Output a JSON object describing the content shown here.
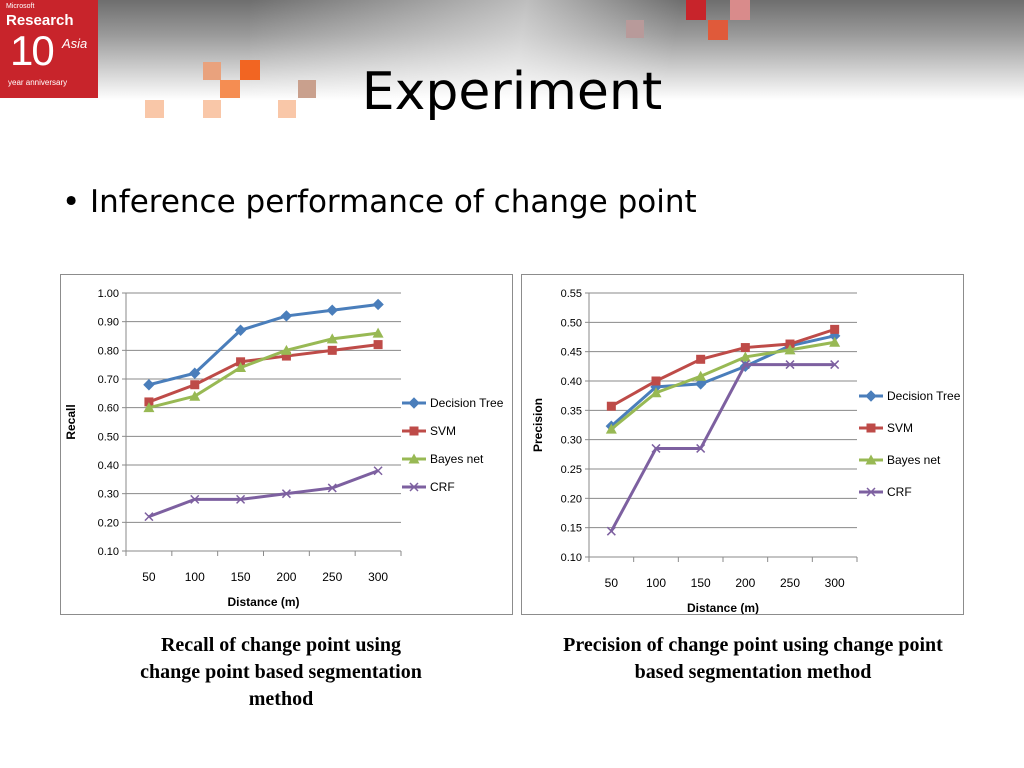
{
  "slide": {
    "title": "Experiment",
    "bullet": "Inference performance of change point"
  },
  "logo": {
    "brand": "Microsoft",
    "research": "Research",
    "number": "10",
    "asia": "Asia",
    "anniversary": "year anniversary"
  },
  "captions": {
    "left": "Recall of change point using change point based segmentation method",
    "right": "Precision of change point using change point based segmentation method"
  },
  "colors": {
    "decision_tree": "#4a7ebb",
    "svm": "#be4b48",
    "bayes_net": "#98b954",
    "crf": "#7d60a0",
    "logo_red": "#c8242b",
    "accent_orange": "#f26522"
  },
  "chart_data": [
    {
      "type": "line",
      "title": "",
      "xlabel": "Distance (m)",
      "ylabel": "Recall",
      "categories": [
        "50",
        "100",
        "150",
        "200",
        "250",
        "300"
      ],
      "ylim": [
        0.1,
        1.0
      ],
      "yticks": [
        "0.10",
        "0.20",
        "0.30",
        "0.40",
        "0.50",
        "0.60",
        "0.70",
        "0.80",
        "0.90",
        "1.00"
      ],
      "grid": true,
      "legend": "right",
      "series": [
        {
          "name": "Decision Tree",
          "values": [
            0.68,
            0.72,
            0.87,
            0.92,
            0.94,
            0.96
          ],
          "marker": "diamond",
          "color": "#4a7ebb"
        },
        {
          "name": "SVM",
          "values": [
            0.62,
            0.68,
            0.76,
            0.78,
            0.8,
            0.82
          ],
          "marker": "square",
          "color": "#be4b48"
        },
        {
          "name": "Bayes net",
          "values": [
            0.6,
            0.64,
            0.74,
            0.8,
            0.84,
            0.86
          ],
          "marker": "triangle",
          "color": "#98b954"
        },
        {
          "name": "CRF",
          "values": [
            0.22,
            0.28,
            0.28,
            0.3,
            0.32,
            0.38
          ],
          "marker": "x",
          "color": "#7d60a0"
        }
      ]
    },
    {
      "type": "line",
      "title": "",
      "xlabel": "Distance (m)",
      "ylabel": "Precision",
      "categories": [
        "50",
        "100",
        "150",
        "200",
        "250",
        "300"
      ],
      "ylim": [
        0.1,
        0.55
      ],
      "yticks": [
        "0.10",
        "0.15",
        "0.20",
        "0.25",
        "0.30",
        "0.35",
        "0.40",
        "0.45",
        "0.50",
        "0.55"
      ],
      "grid": true,
      "legend": "right",
      "series": [
        {
          "name": "Decision Tree",
          "values": [
            0.323,
            0.39,
            0.395,
            0.425,
            0.46,
            0.477
          ],
          "marker": "diamond",
          "color": "#4a7ebb"
        },
        {
          "name": "SVM",
          "values": [
            0.357,
            0.4,
            0.437,
            0.457,
            0.463,
            0.488
          ],
          "marker": "square",
          "color": "#be4b48"
        },
        {
          "name": "Bayes net",
          "values": [
            0.318,
            0.38,
            0.408,
            0.441,
            0.453,
            0.466
          ],
          "marker": "triangle",
          "color": "#98b954"
        },
        {
          "name": "CRF",
          "values": [
            0.144,
            0.285,
            0.285,
            0.428,
            0.428,
            0.428
          ],
          "marker": "x",
          "color": "#7d60a0"
        }
      ]
    }
  ]
}
